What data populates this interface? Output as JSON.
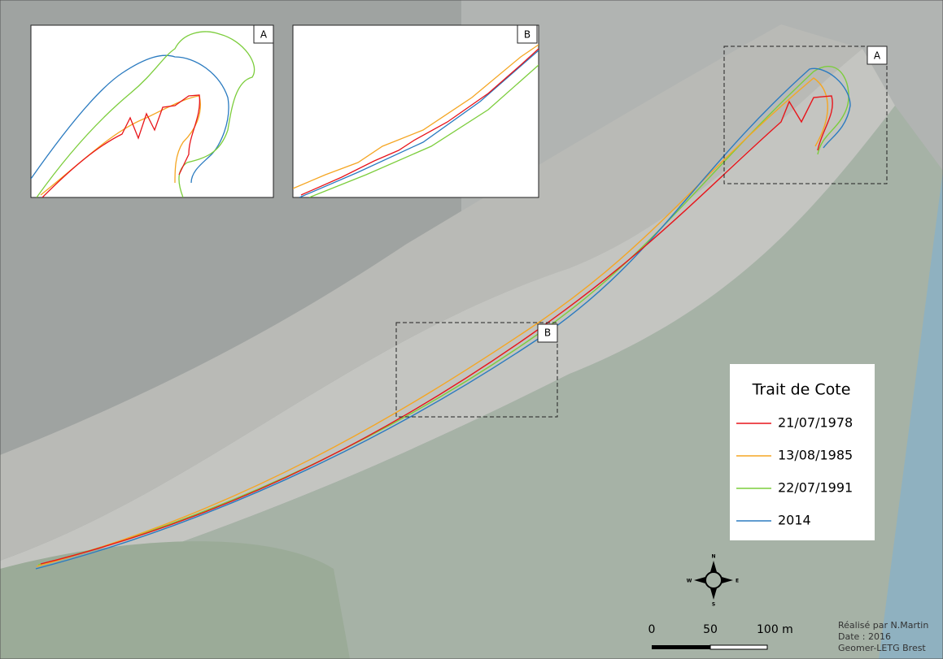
{
  "insets": [
    {
      "label": "A"
    },
    {
      "label": "B"
    }
  ],
  "map_boxes": [
    {
      "label": "A"
    },
    {
      "label": "B"
    }
  ],
  "legend": {
    "title": "Trait de Cote",
    "items": [
      {
        "label": "21/07/1978",
        "color": "#e8151b"
      },
      {
        "label": "13/08/1985",
        "color": "#f5a623"
      },
      {
        "label": "22/07/1991",
        "color": "#7ccd3c"
      },
      {
        "label": "2014",
        "color": "#2b7bc0"
      }
    ]
  },
  "compass": {
    "n": "N",
    "s": "S",
    "e": "E",
    "w": "W"
  },
  "scale": {
    "labels": [
      "0",
      "50",
      "100 m"
    ]
  },
  "credits": [
    "Réalisé par N.Martin",
    "Date : 2016",
    "Geomer-LETG Brest"
  ]
}
